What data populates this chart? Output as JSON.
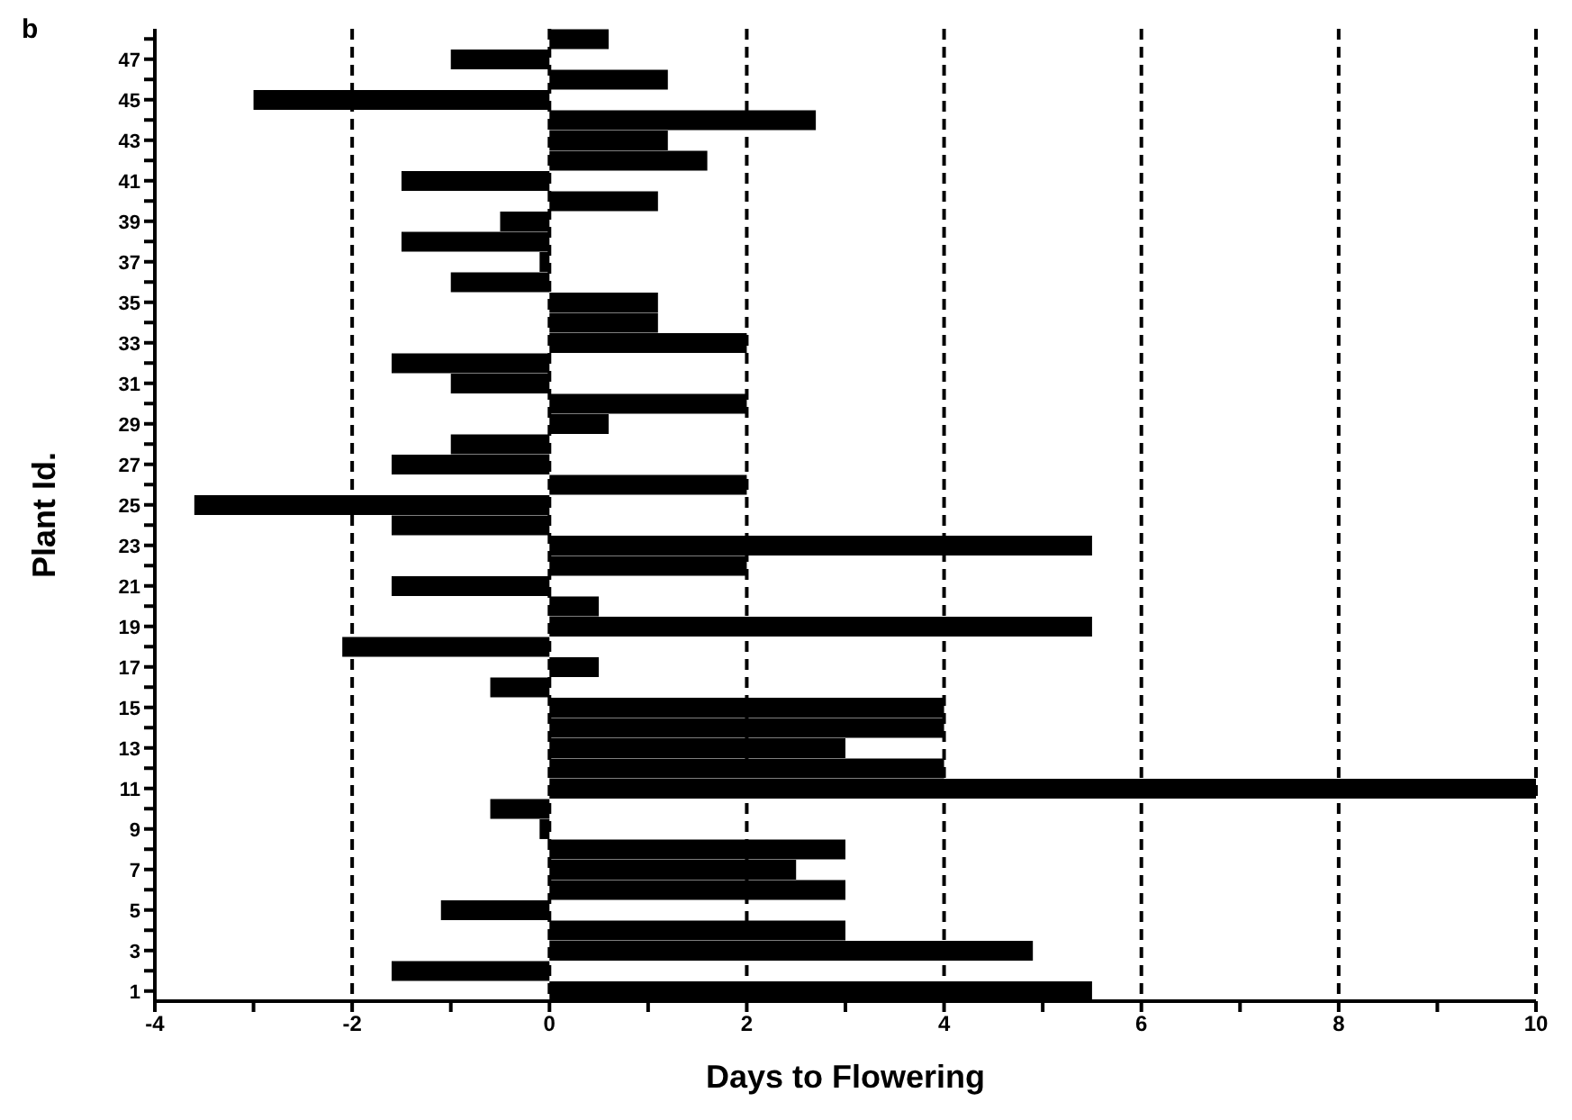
{
  "chart_data": {
    "type": "bar",
    "orientation": "horizontal",
    "xlabel": "Days to Flowering",
    "ylabel": "Plant Id.",
    "annotations": [
      "b"
    ],
    "categories": [
      null,
      "47",
      null,
      "45",
      null,
      "43",
      null,
      "41",
      null,
      "39",
      null,
      "37",
      null,
      "35",
      null,
      "33",
      null,
      "31",
      null,
      "29",
      null,
      "27",
      null,
      "25",
      null,
      "23",
      null,
      "21",
      null,
      "19",
      null,
      "17",
      null,
      "15",
      null,
      "13",
      null,
      "11",
      null,
      "9",
      null,
      "7",
      null,
      "5",
      null,
      "3",
      null,
      "1"
    ],
    "values": [
      0.6,
      -1.0,
      1.2,
      -3.0,
      2.7,
      1.2,
      1.6,
      -1.5,
      1.1,
      -0.5,
      -1.5,
      -0.1,
      -1.0,
      1.1,
      1.1,
      2.0,
      -1.6,
      -1.0,
      2.0,
      0.6,
      -1.0,
      -1.6,
      2.0,
      -3.6,
      -1.6,
      5.5,
      2.0,
      -1.6,
      0.5,
      5.5,
      -2.1,
      0.5,
      -0.6,
      4.0,
      4.0,
      3.0,
      4.0,
      10,
      -0.6,
      -0.1,
      3.0,
      2.5,
      3.0,
      -1.1,
      3.0,
      4.9,
      -1.6,
      5.5
    ],
    "color": "#000000",
    "xlim": [
      -4,
      10
    ],
    "xticks": [
      -4,
      {
        "value": -3,
        "label": null
      },
      -2,
      {
        "value": -1,
        "label": null
      },
      0,
      {
        "value": 1,
        "label": null
      },
      2,
      {
        "value": 3,
        "label": null
      },
      4,
      {
        "value": 5,
        "label": null
      },
      6,
      {
        "value": 7,
        "label": null
      },
      8,
      {
        "value": 9,
        "label": null
      },
      10
    ],
    "grid": "x",
    "line_style": "dashed"
  }
}
